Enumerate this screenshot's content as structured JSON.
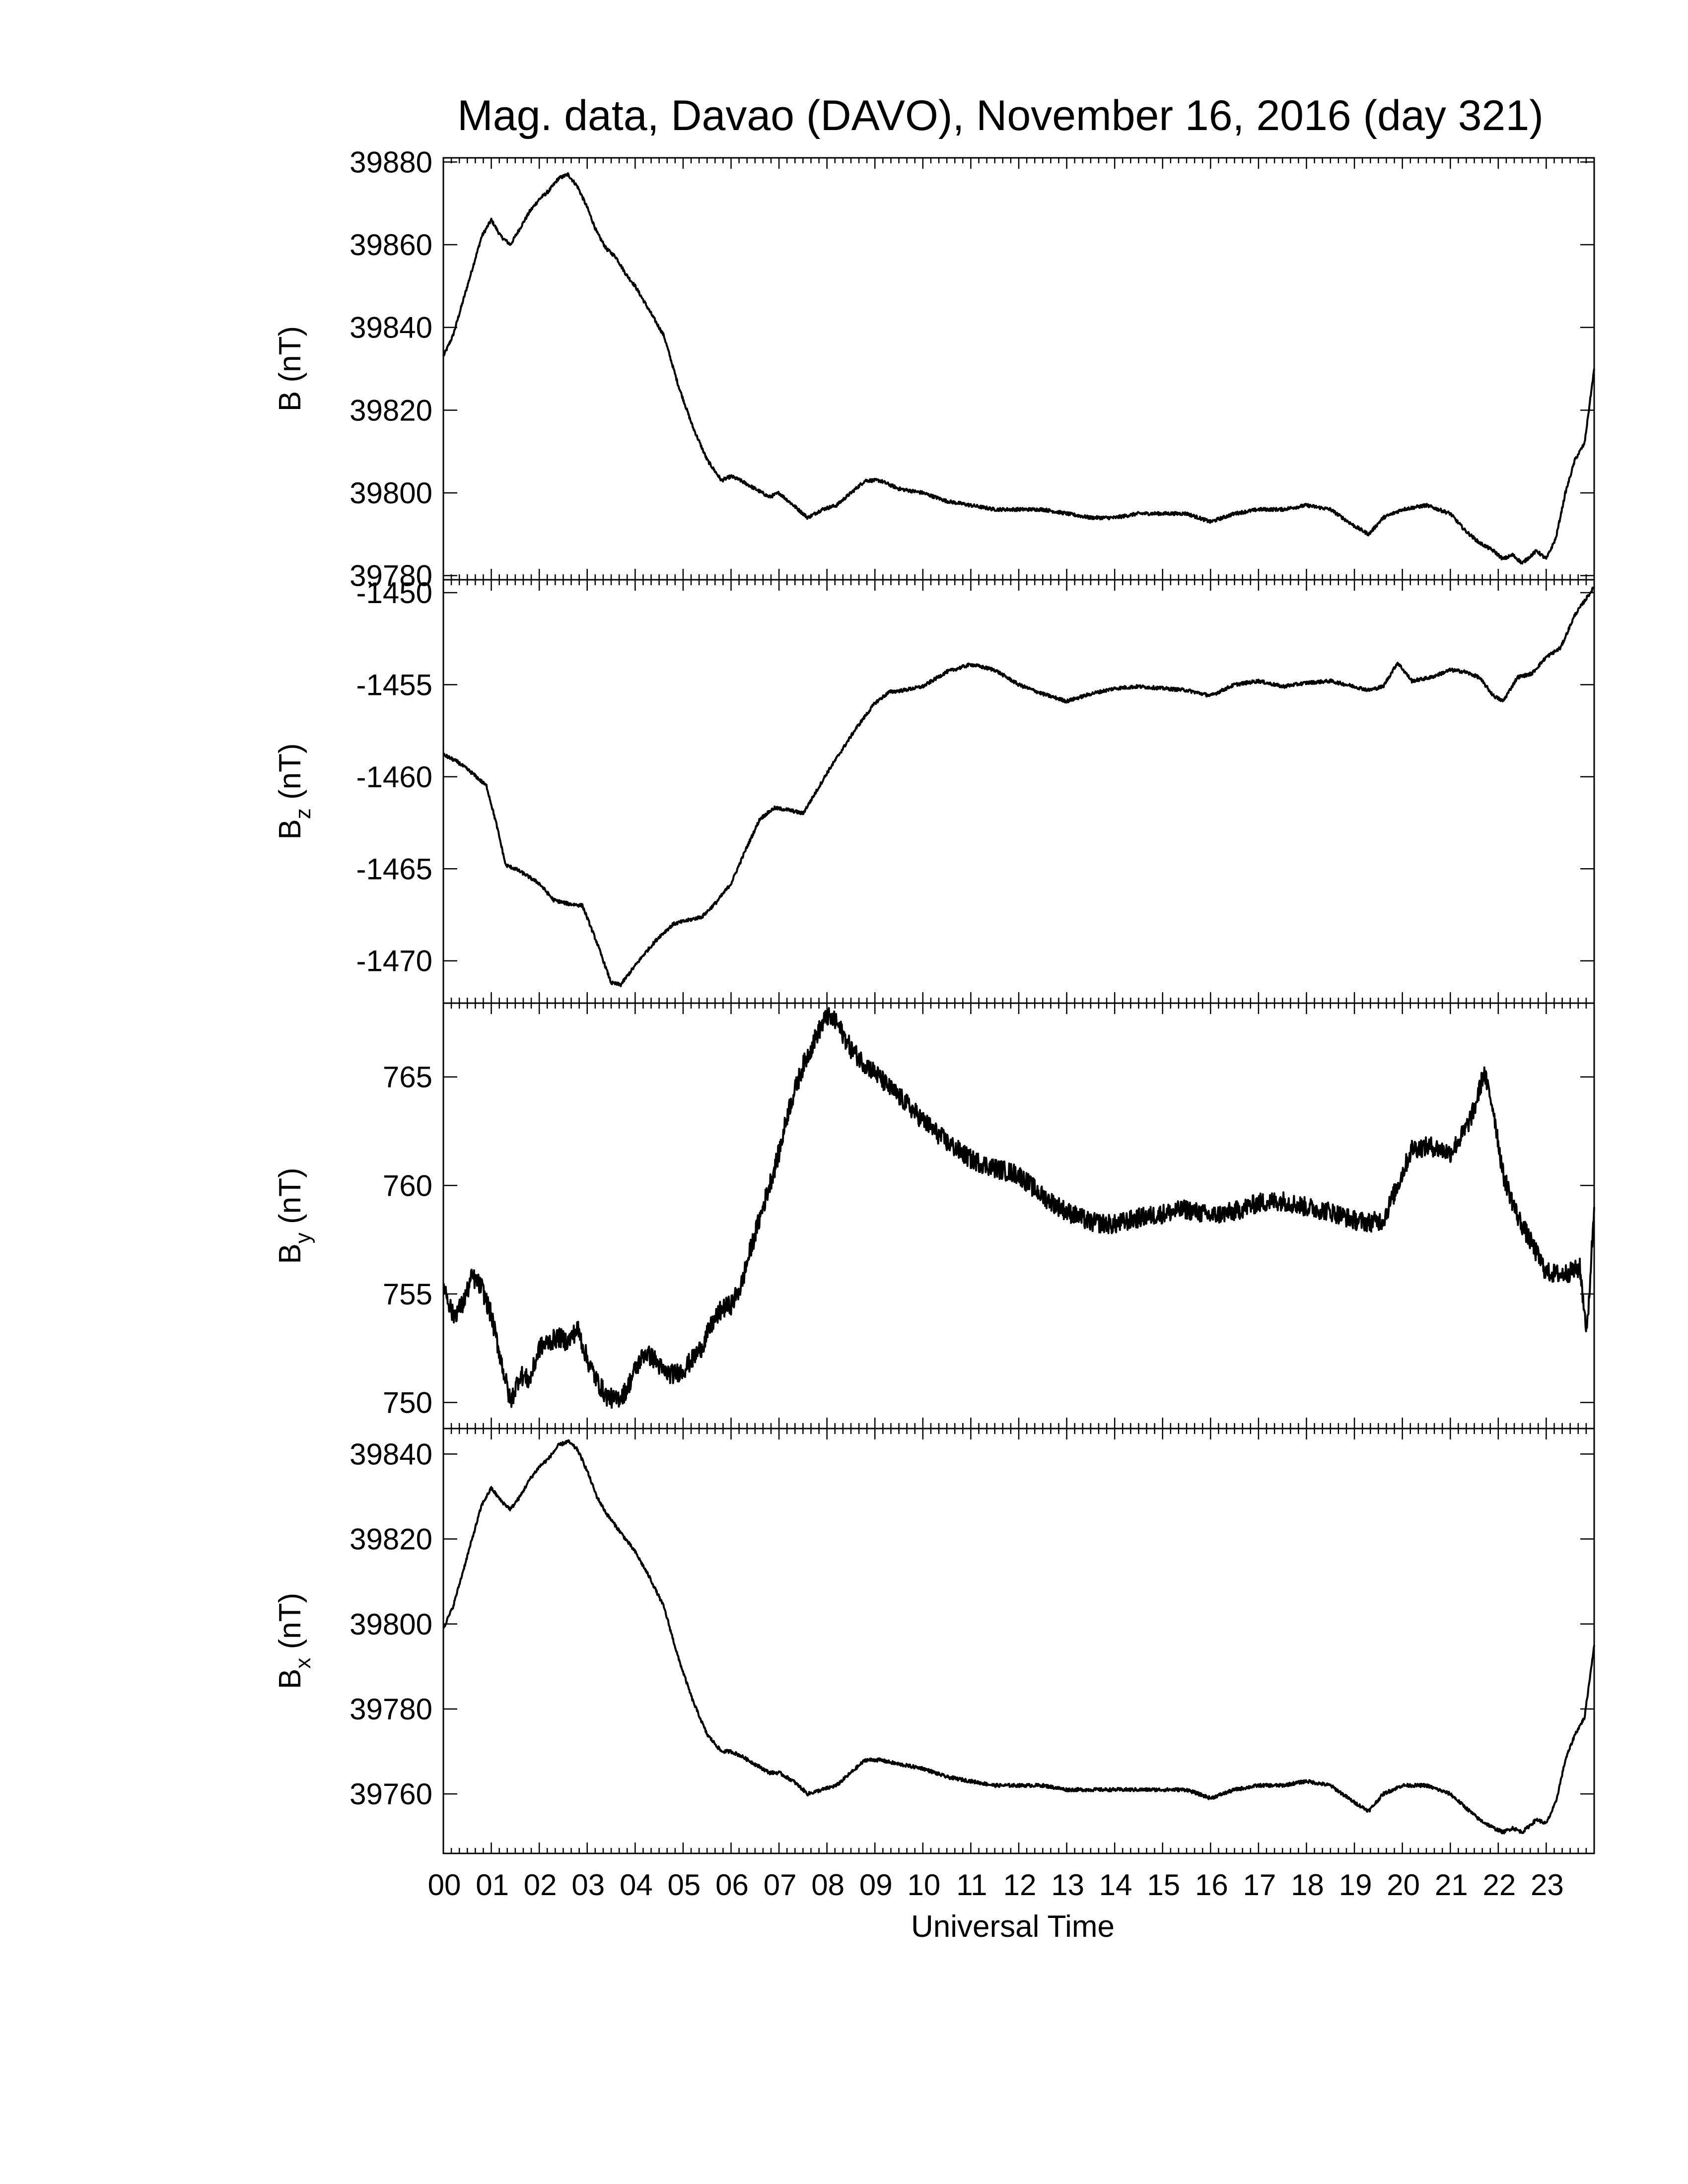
{
  "title": "Mag. data, Davao (DAVO), November 16, 2016 (day 321)",
  "xlabel": "Universal Time",
  "x_tick_labels": [
    "00",
    "01",
    "02",
    "03",
    "04",
    "05",
    "06",
    "07",
    "08",
    "09",
    "10",
    "11",
    "12",
    "13",
    "14",
    "15",
    "16",
    "17",
    "18",
    "19",
    "20",
    "21",
    "22",
    "23"
  ],
  "chart_data": [
    {
      "type": "line",
      "ylabel": "B (nT)",
      "ylabel_main": "B",
      "ylabel_sub": "",
      "ylabel_unit": " (nT)",
      "xlim": [
        0,
        24
      ],
      "ylim": [
        39779,
        39881
      ],
      "yticks": [
        39780,
        39800,
        39820,
        39840,
        39860,
        39880
      ],
      "x": [
        0,
        0.2,
        0.4,
        0.6,
        0.8,
        1.0,
        1.2,
        1.4,
        1.6,
        1.8,
        2.0,
        2.2,
        2.4,
        2.6,
        2.8,
        3.0,
        3.2,
        3.4,
        3.6,
        3.8,
        4.0,
        4.3,
        4.6,
        4.9,
        5.2,
        5.5,
        5.8,
        6.0,
        6.2,
        6.5,
        6.8,
        7.0,
        7.3,
        7.6,
        7.9,
        8.2,
        8.5,
        8.8,
        9.1,
        9.5,
        10,
        10.5,
        11,
        11.5,
        12,
        12.5,
        13,
        13.5,
        14,
        14.5,
        15,
        15.5,
        16,
        16.5,
        17,
        17.5,
        18,
        18.5,
        19,
        19.3,
        19.6,
        20,
        20.5,
        21,
        21.3,
        21.6,
        21.9,
        22.1,
        22.3,
        22.5,
        22.8,
        23,
        23.2,
        23.4,
        23.6,
        23.8,
        24
      ],
      "y": [
        39833,
        39838,
        39846,
        39854,
        39862,
        39866,
        39862,
        39860,
        39864,
        39868,
        39871,
        39873,
        39876,
        39877,
        39874,
        39869,
        39863,
        39859,
        39857,
        39853,
        39850,
        39844,
        39838,
        39826,
        39816,
        39808,
        39803,
        39804,
        39803,
        39801,
        39799,
        39800,
        39797,
        39794,
        39796,
        39797,
        39800,
        39803,
        39803,
        39801,
        39800,
        39798,
        39797,
        39796,
        39796,
        39796,
        39795,
        39794,
        39794,
        39795,
        39795,
        39795,
        39793,
        39795,
        39796,
        39796,
        39797,
        39796,
        39792,
        39790,
        39794,
        39796,
        39797,
        39795,
        39791,
        39788,
        39786,
        39784,
        39785,
        39783,
        39786,
        39784,
        39789,
        39800,
        39808,
        39812,
        39830
      ]
    },
    {
      "type": "line",
      "ylabel": "Bz (nT)",
      "ylabel_main": "B",
      "ylabel_sub": "z",
      "ylabel_unit": " (nT)",
      "xlim": [
        0,
        24
      ],
      "ylim": [
        -1472.3,
        -1449.3
      ],
      "yticks": [
        -1450,
        -1455,
        -1460,
        -1465,
        -1470
      ],
      "x": [
        0,
        0.3,
        0.6,
        0.9,
        1.1,
        1.3,
        1.5,
        1.7,
        2.0,
        2.3,
        2.6,
        2.9,
        3.2,
        3.5,
        3.7,
        3.9,
        4.2,
        4.5,
        4.8,
        5.1,
        5.4,
        5.7,
        6.0,
        6.3,
        6.6,
        6.9,
        7.2,
        7.5,
        7.8,
        8.0,
        8.3,
        8.6,
        9.0,
        9.3,
        9.6,
        10,
        10.5,
        11,
        11.5,
        12,
        12.5,
        13,
        13.5,
        14,
        14.5,
        15,
        15.5,
        16,
        16.5,
        17,
        17.5,
        18,
        18.5,
        19,
        19.3,
        19.6,
        19.9,
        20.2,
        20.6,
        21,
        21.3,
        21.6,
        21.9,
        22.1,
        22.4,
        22.7,
        23.0,
        23.3,
        23.6,
        24
      ],
      "y": [
        -1458.8,
        -1459.2,
        -1459.8,
        -1460.5,
        -1462.5,
        -1464.8,
        -1465.0,
        -1465.3,
        -1465.8,
        -1466.7,
        -1466.9,
        -1467.0,
        -1469.0,
        -1471.2,
        -1471.3,
        -1470.6,
        -1469.6,
        -1468.7,
        -1468.0,
        -1467.8,
        -1467.6,
        -1466.8,
        -1465.8,
        -1464.0,
        -1462.3,
        -1461.7,
        -1461.8,
        -1462.0,
        -1460.7,
        -1459.8,
        -1458.6,
        -1457.4,
        -1456.0,
        -1455.4,
        -1455.3,
        -1455.1,
        -1454.3,
        -1453.9,
        -1454.2,
        -1455.0,
        -1455.5,
        -1455.9,
        -1455.5,
        -1455.2,
        -1455.1,
        -1455.2,
        -1455.3,
        -1455.6,
        -1455.0,
        -1454.8,
        -1455.1,
        -1454.9,
        -1454.8,
        -1455.1,
        -1455.3,
        -1455.1,
        -1453.8,
        -1454.8,
        -1454.6,
        -1454.2,
        -1454.3,
        -1454.6,
        -1455.6,
        -1455.9,
        -1454.6,
        -1454.4,
        -1453.5,
        -1453.0,
        -1451.2,
        -1449.7
      ]
    },
    {
      "type": "line",
      "ylabel": "By (nT)",
      "ylabel_main": "B",
      "ylabel_sub": "y",
      "ylabel_unit": " (nT)",
      "xlim": [
        0,
        24
      ],
      "ylim": [
        748.8,
        768.4
      ],
      "yticks": [
        750,
        755,
        760,
        765
      ],
      "x": [
        0,
        0.2,
        0.4,
        0.6,
        0.8,
        1.0,
        1.2,
        1.4,
        1.6,
        1.8,
        2.0,
        2.2,
        2.4,
        2.6,
        2.8,
        3.0,
        3.2,
        3.4,
        3.6,
        3.8,
        4.0,
        4.2,
        4.4,
        4.6,
        4.8,
        5.0,
        5.2,
        5.4,
        5.6,
        5.8,
        6.0,
        6.2,
        6.4,
        6.6,
        6.8,
        7.0,
        7.2,
        7.5,
        7.8,
        8.0,
        8.2,
        8.5,
        8.7,
        9.0,
        9.3,
        9.6,
        10,
        10.5,
        11,
        11.5,
        12,
        12.5,
        13,
        13.5,
        14,
        14.5,
        15,
        15.5,
        16,
        16.5,
        17,
        17.5,
        18,
        18.5,
        19,
        19.3,
        19.6,
        19.9,
        20.2,
        20.6,
        21,
        21.3,
        21.5,
        21.7,
        21.9,
        22.1,
        22.4,
        22.7,
        23,
        23.3,
        23.5,
        23.7,
        23.85,
        24
      ],
      "y": [
        755.5,
        754.0,
        754.5,
        755.8,
        755.3,
        754.0,
        752.0,
        750.0,
        751.3,
        751.0,
        752.5,
        752.8,
        753.0,
        752.8,
        753.4,
        752.0,
        751.0,
        750.3,
        750.1,
        750.5,
        751.5,
        752.3,
        752.0,
        751.4,
        751.3,
        751.5,
        752.0,
        752.6,
        753.6,
        754.3,
        754.5,
        755.3,
        757.0,
        758.5,
        760.0,
        761.5,
        763.5,
        765.5,
        767.0,
        767.8,
        767.5,
        766.3,
        765.8,
        765.2,
        764.5,
        763.9,
        763.0,
        762.0,
        761.2,
        760.8,
        760.5,
        759.5,
        758.8,
        758.3,
        758.2,
        758.5,
        758.7,
        758.9,
        758.6,
        758.8,
        759.2,
        759.3,
        759.0,
        758.8,
        758.4,
        758.3,
        758.4,
        760.0,
        761.7,
        761.8,
        761.5,
        762.5,
        763.5,
        765.2,
        763.5,
        760.5,
        758.6,
        757.3,
        756.0,
        755.9,
        756.0,
        756.2,
        753.2,
        759.0
      ]
    },
    {
      "type": "line",
      "ylabel": "Bx (nT)",
      "ylabel_main": "B",
      "ylabel_sub": "x",
      "ylabel_unit": " (nT)",
      "xlim": [
        0,
        24
      ],
      "ylim": [
        39746,
        39846
      ],
      "yticks": [
        39760,
        39780,
        39800,
        39820,
        39840
      ],
      "x": [
        0,
        0.2,
        0.4,
        0.6,
        0.8,
        1.0,
        1.2,
        1.4,
        1.6,
        1.8,
        2.0,
        2.2,
        2.4,
        2.6,
        2.8,
        3.0,
        3.2,
        3.4,
        3.6,
        3.8,
        4.0,
        4.3,
        4.6,
        4.9,
        5.2,
        5.5,
        5.8,
        6.0,
        6.2,
        6.5,
        6.8,
        7.0,
        7.3,
        7.6,
        7.9,
        8.2,
        8.5,
        8.8,
        9.1,
        9.5,
        10,
        10.5,
        11,
        11.5,
        12,
        12.5,
        13,
        13.5,
        14,
        14.5,
        15,
        15.5,
        16,
        16.5,
        17,
        17.5,
        18,
        18.5,
        19,
        19.3,
        19.6,
        20,
        20.5,
        21,
        21.3,
        21.6,
        21.9,
        22.1,
        22.3,
        22.5,
        22.8,
        23,
        23.2,
        23.4,
        23.6,
        23.8,
        24
      ],
      "y": [
        39799,
        39804,
        39812,
        39820,
        39828,
        39832,
        39829,
        39827,
        39830,
        39834,
        39837,
        39839,
        39842,
        39843,
        39841,
        39836,
        39830,
        39826,
        39823,
        39820,
        39817,
        39811,
        39804,
        39792,
        39782,
        39774,
        39770,
        39770,
        39769,
        39767,
        39765,
        39765,
        39763,
        39760,
        39761,
        39762,
        39765,
        39768,
        39768,
        39767,
        39766,
        39764,
        39763,
        39762,
        39762,
        39762,
        39761,
        39761,
        39761,
        39761,
        39761,
        39761,
        39759,
        39761,
        39762,
        39762,
        39763,
        39762,
        39758,
        39756,
        39760,
        39762,
        39762,
        39760,
        39757,
        39754,
        39752,
        39751,
        39752,
        39751,
        39754,
        39753,
        39758,
        39768,
        39774,
        39778,
        39795
      ]
    }
  ]
}
